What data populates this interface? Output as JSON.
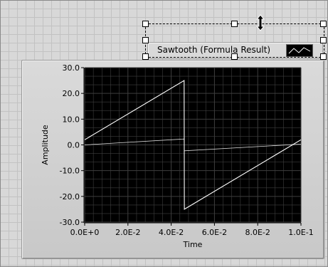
{
  "graph": {
    "legend_label": "Sawtooth (Formula Result)",
    "ylabel": "Amplitude",
    "xlabel": "Time",
    "y_ticks": [
      "30.0",
      "20.0",
      "10.0",
      "0.0",
      "-10.0",
      "-20.0",
      "-30.0"
    ],
    "x_ticks": [
      "0.0E+0",
      "2.0E-2",
      "4.0E-2",
      "6.0E-2",
      "8.0E-2",
      "1.0E-1"
    ]
  },
  "colors": {
    "plot_bg": "#000000",
    "grid": "#3e3e3e",
    "trace": "#ffffff",
    "panel_bg": "#d8d8d8"
  },
  "icons": {
    "cursor": "vertical-resize-cursor-icon",
    "legend_swatch": "trace-line-icon"
  },
  "chart_data": {
    "type": "line",
    "xlabel": "Time",
    "ylabel": "Amplitude",
    "xlim": [
      0,
      0.1
    ],
    "ylim": [
      -30,
      30
    ],
    "grid": true,
    "legend": "top-right",
    "series": [
      {
        "name": "Sawtooth (Formula Result)",
        "x": [
          0,
          0.046,
          0.0461,
          0.1
        ],
        "y": [
          2,
          25,
          -25,
          2
        ]
      },
      {
        "x": [
          0,
          0.046,
          0.0461,
          0.1
        ],
        "y": [
          0,
          2.3,
          -2.3,
          0.3
        ]
      }
    ]
  }
}
